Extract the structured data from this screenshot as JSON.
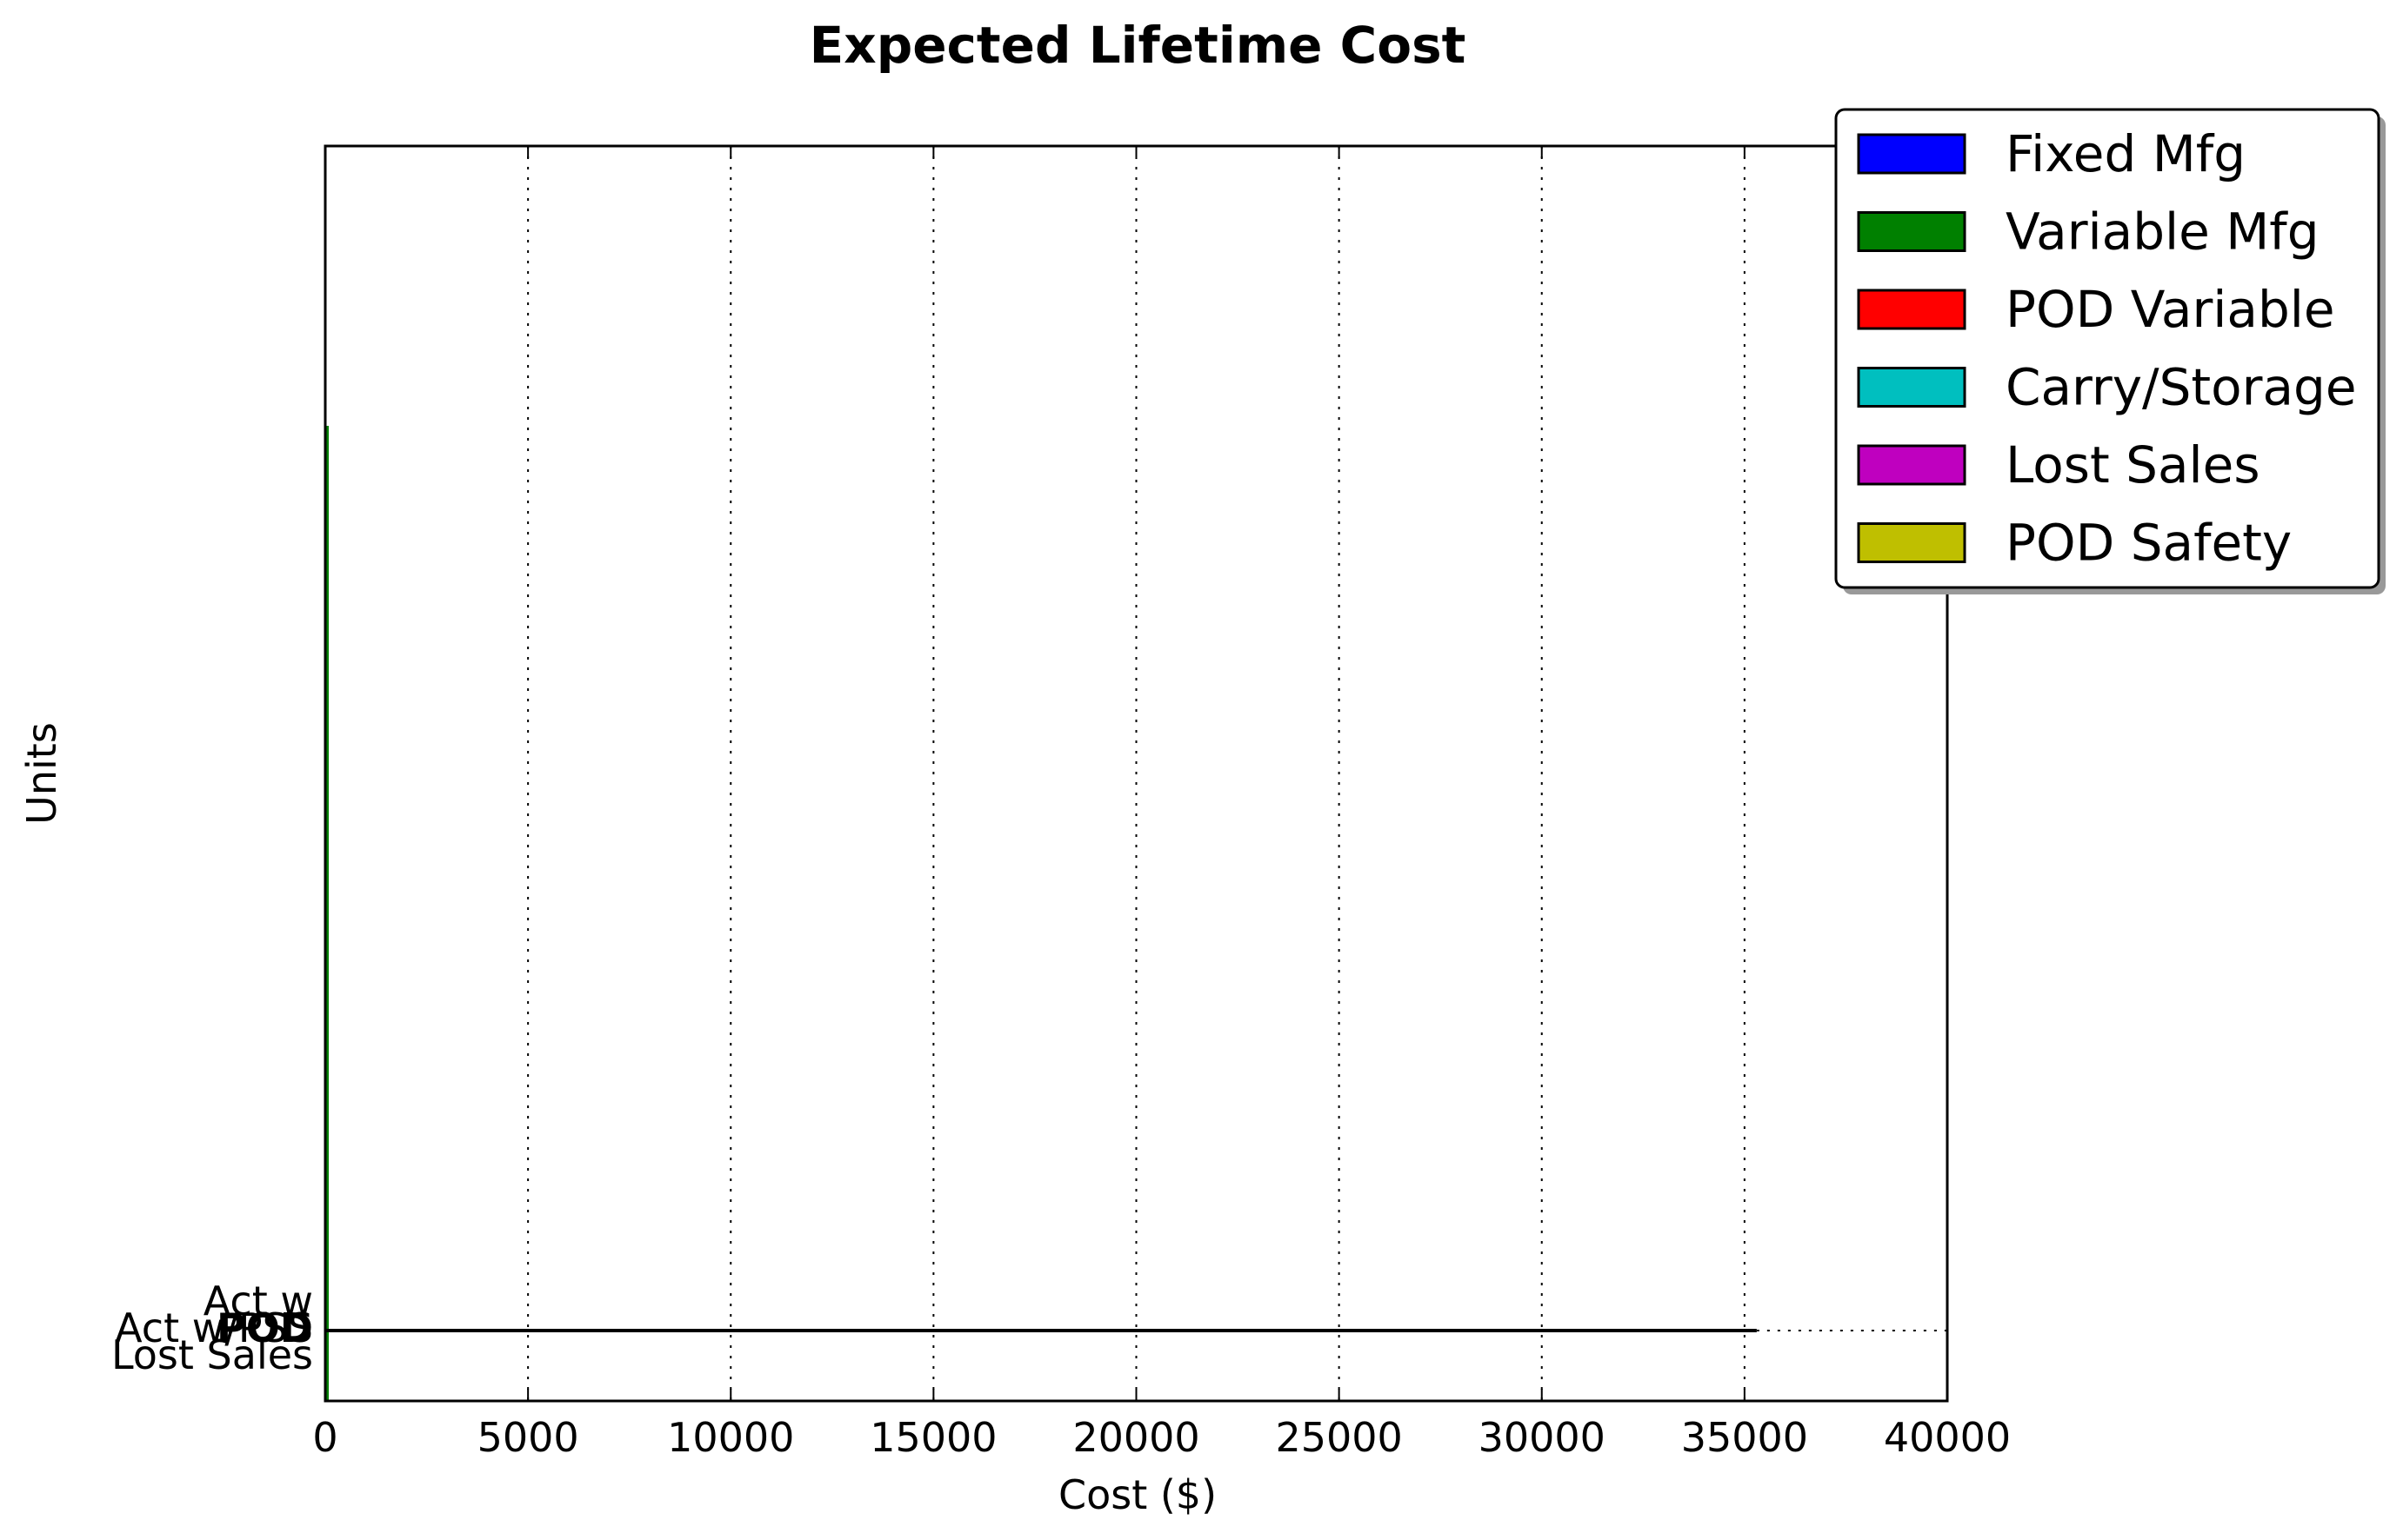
{
  "chart_data": {
    "type": "bar",
    "orientation": "horizontal",
    "stacked": true,
    "title": "Expected Lifetime Cost",
    "xlabel": "Cost ($)",
    "ylabel": "Units",
    "xlim": [
      0,
      40000
    ],
    "x_ticks": [
      "0",
      "5000",
      "10000",
      "15000",
      "20000",
      "25000",
      "30000",
      "35000",
      "40000"
    ],
    "x_grid": true,
    "legend_position": "top-right",
    "categories": [
      "Act w",
      "Act w/PSS",
      "POD",
      "Lost Sales"
    ],
    "series": [
      {
        "name": "Fixed Mfg",
        "color": "#0000ff",
        "values": [
          0,
          0,
          0,
          0
        ]
      },
      {
        "name": "Variable Mfg",
        "color": "#008000",
        "values": [
          0,
          0,
          0,
          0
        ]
      },
      {
        "name": "POD Variable",
        "color": "#ff0000",
        "values": [
          0,
          0,
          0,
          0
        ]
      },
      {
        "name": "Carry/Storage",
        "color": "#00bfbf",
        "values": [
          0,
          0,
          0,
          0
        ]
      },
      {
        "name": "Lost Sales",
        "color": "#bf00bf",
        "values": [
          0,
          0,
          0,
          0
        ]
      },
      {
        "name": "POD Safety",
        "color": "#bfbf00",
        "values": [
          0,
          0,
          0,
          0
        ]
      }
    ],
    "horizontal_line": {
      "x_end": 35300,
      "dotted_to": 40000
    }
  }
}
